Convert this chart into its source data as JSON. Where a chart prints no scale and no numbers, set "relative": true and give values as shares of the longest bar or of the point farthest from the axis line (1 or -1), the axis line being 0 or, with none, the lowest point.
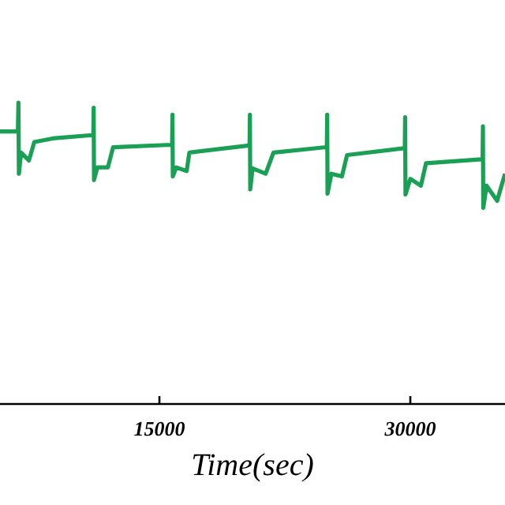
{
  "chart_data": {
    "type": "line",
    "relative": true,
    "xlabel": "Time(sec)",
    "xlim": [
      5470,
      35660
    ],
    "xticks": [
      15000,
      30000
    ],
    "grid": false,
    "line_style": "solid",
    "series": [
      {
        "color": "#1aa055",
        "x": [
          5470,
          6540,
          6570,
          6600,
          6730,
          7200,
          7520,
          8620,
          10970,
          11050,
          11070,
          11090,
          11290,
          11920,
          12230,
          15690,
          15760,
          15780,
          15800,
          16010,
          16630,
          16790,
          20250,
          20390,
          20410,
          20430,
          20570,
          21350,
          21820,
          24970,
          25010,
          25030,
          25050,
          25280,
          25910,
          26220,
          29530,
          29670,
          29690,
          29710,
          30000,
          30630,
          30940,
          34250,
          34320,
          34340,
          34360,
          34560,
          35190,
          35660
        ],
        "values": [
          0.904,
          0.904,
          1,
          0.764,
          0.834,
          0.808,
          0.869,
          0.881,
          0.892,
          0.892,
          0.983,
          0.743,
          0.785,
          0.785,
          0.852,
          0.86,
          0.86,
          0.96,
          0.755,
          0.785,
          0.773,
          0.834,
          0.857,
          0.857,
          0.96,
          0.712,
          0.782,
          0.764,
          0.834,
          0.852,
          0.852,
          0.96,
          0.698,
          0.764,
          0.755,
          0.826,
          0.848,
          0.848,
          0.951,
          0.695,
          0.747,
          0.724,
          0.799,
          0.812,
          0.812,
          0.921,
          0.651,
          0.724,
          0.674,
          0.764
        ]
      }
    ]
  }
}
